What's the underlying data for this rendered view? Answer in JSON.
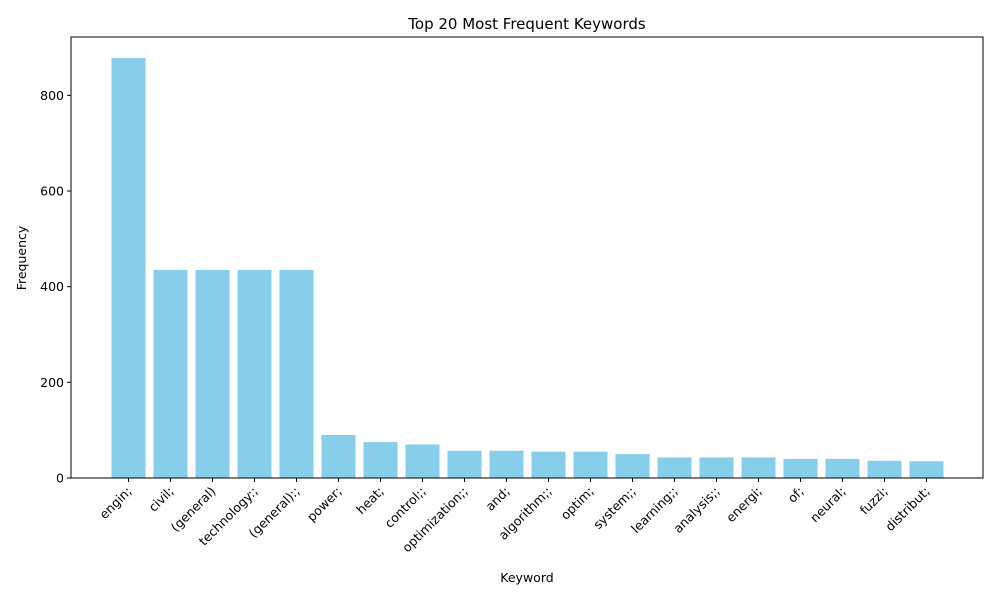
{
  "chart_data": {
    "type": "bar",
    "title": "Top 20 Most Frequent Keywords",
    "xlabel": "Keyword",
    "ylabel": "Frequency",
    "categories": [
      "engin;",
      "civil;",
      "(general)",
      "technology:;",
      "(general):;",
      "power;",
      "heat;",
      "control;;",
      "optimization;;",
      "and;",
      "algorithm;;",
      "optim;",
      "system;;",
      "learning;;",
      "analysis;;",
      "energi;",
      "of;",
      "neural;",
      "fuzzi;",
      "distribut;"
    ],
    "values": [
      878,
      435,
      435,
      435,
      435,
      90,
      75,
      70,
      57,
      57,
      55,
      55,
      50,
      43,
      43,
      43,
      40,
      40,
      36,
      35
    ],
    "ylim": [
      0,
      922
    ],
    "yticks": [
      0,
      200,
      400,
      600,
      800
    ],
    "bar_color": "#87ceeb",
    "grid": false,
    "legend": "none"
  }
}
